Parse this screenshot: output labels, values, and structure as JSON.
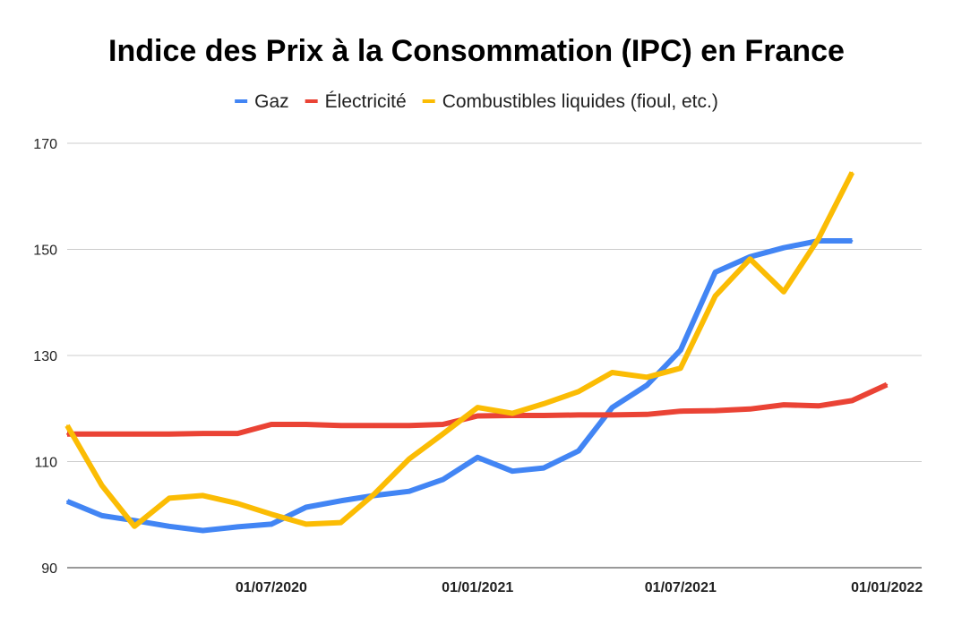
{
  "chart_data": {
    "type": "line",
    "title": "Indice des Prix à la Consommation (IPC) en France",
    "xlabel": "",
    "ylabel": "",
    "x": [
      "2020-01-01",
      "2020-02-01",
      "2020-03-01",
      "2020-04-01",
      "2020-05-01",
      "2020-06-01",
      "2020-07-01",
      "2020-08-01",
      "2020-09-01",
      "2020-10-01",
      "2020-11-01",
      "2020-12-01",
      "2021-01-01",
      "2021-02-01",
      "2021-03-01",
      "2021-04-01",
      "2021-05-01",
      "2021-06-01",
      "2021-07-01",
      "2021-08-01",
      "2021-09-01",
      "2021-10-01",
      "2021-11-01",
      "2021-12-01",
      "2022-01-01",
      "2022-02-01"
    ],
    "x_range": [
      "2020-01-01",
      "2022-02-01"
    ],
    "x_ticks": [
      "01/07/2020",
      "01/01/2021",
      "01/07/2021",
      "01/01/2022"
    ],
    "x_tick_dates": [
      "2020-07-01",
      "2021-01-01",
      "2021-07-01",
      "2022-01-01"
    ],
    "y_ticks": [
      90,
      110,
      130,
      150,
      170
    ],
    "ylim": [
      90,
      170
    ],
    "grid": true,
    "legend_position": "top",
    "series": [
      {
        "name": "Gaz",
        "color": "#4285F4",
        "values": [
          102.5,
          99.8,
          98.9,
          97.8,
          97.0,
          97.7,
          98.2,
          101.4,
          102.6,
          103.6,
          104.4,
          106.6,
          110.8,
          108.2,
          108.8,
          112.0,
          120.2,
          124.4,
          131.0,
          145.7,
          148.6,
          150.3,
          151.6,
          151.6,
          null,
          null
        ]
      },
      {
        "name": "Électricité",
        "color": "#EA4335",
        "values": [
          115.2,
          115.2,
          115.2,
          115.2,
          115.3,
          115.3,
          117.0,
          117.0,
          116.8,
          116.8,
          116.8,
          117.0,
          118.6,
          118.7,
          118.7,
          118.8,
          118.8,
          118.9,
          119.5,
          119.6,
          119.9,
          120.7,
          120.5,
          121.5,
          124.5,
          null
        ]
      },
      {
        "name": "Combustibles liquides (fioul, etc.)",
        "color": "#FBBC04",
        "values": [
          116.8,
          105.5,
          97.8,
          103.1,
          103.6,
          102.1,
          100.1,
          98.2,
          98.5,
          103.9,
          110.5,
          115.2,
          120.2,
          119.1,
          120.9,
          123.2,
          126.8,
          125.9,
          127.6,
          141.2,
          148.2,
          142.0,
          152.0,
          164.5,
          null,
          null
        ]
      }
    ]
  }
}
